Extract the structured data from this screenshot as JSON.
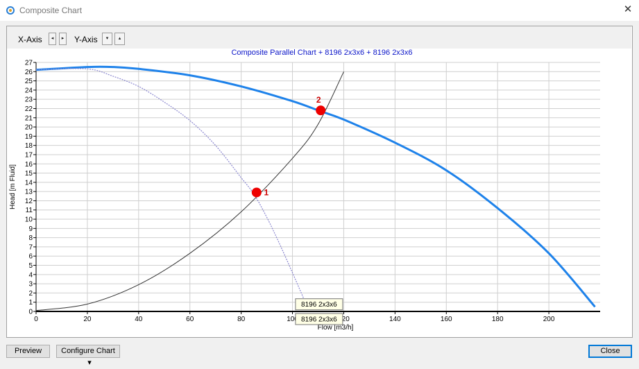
{
  "window": {
    "title": "Composite Chart",
    "close_glyph": "✕",
    "icon": "chart-app-icon"
  },
  "toolbar": {
    "x_axis_label": "X-Axis",
    "y_axis_label": "Y-Axis",
    "x_left_glyph": "◂",
    "x_right_glyph": "▸",
    "y_down_glyph": "▾",
    "y_up_glyph": "▴"
  },
  "buttons": {
    "preview": "Preview",
    "configure": "Configure Chart",
    "configure_arrow": "▾",
    "close": "Close"
  },
  "chart_data": {
    "type": "line",
    "title": "Composite Parallel Chart + 8196 2x3x6 + 8196 2x3x6",
    "xlabel": "Flow [m3/h]",
    "ylabel": "Head [m Fluid]",
    "xlim": [
      0,
      220
    ],
    "ylim": [
      0,
      27
    ],
    "x_ticks": [
      0,
      20,
      40,
      60,
      80,
      100,
      120,
      140,
      160,
      180,
      200
    ],
    "y_ticks": [
      0,
      1,
      2,
      3,
      4,
      5,
      6,
      7,
      8,
      9,
      10,
      11,
      12,
      13,
      14,
      15,
      16,
      17,
      18,
      19,
      20,
      21,
      22,
      23,
      24,
      25,
      26,
      27
    ],
    "grid": true,
    "colors": {
      "composite": "#1e82ea",
      "single": "#8a86cf",
      "system": "#333333",
      "marker": "#ee0000",
      "title": "#0a14c8"
    },
    "series": [
      {
        "key": "composite",
        "style": "solid-thick",
        "x": [
          0,
          20,
          30,
          40,
          60,
          80,
          100,
          110,
          120,
          140,
          160,
          180,
          200,
          218
        ],
        "y": [
          26.2,
          26.5,
          26.5,
          26.3,
          25.6,
          24.4,
          22.8,
          21.8,
          20.8,
          18.3,
          15.3,
          11.2,
          6.3,
          0.5
        ]
      },
      {
        "key": "single",
        "style": "dotted",
        "x": [
          0,
          20,
          30,
          40,
          50,
          60,
          70,
          80,
          85,
          90,
          95,
          100,
          105
        ],
        "y": [
          26.2,
          26.3,
          25.5,
          24.4,
          22.7,
          20.7,
          18.0,
          14.5,
          12.7,
          10.2,
          7.3,
          4.2,
          1.0
        ]
      },
      {
        "key": "system",
        "style": "solid-thin",
        "x": [
          0,
          20,
          40,
          60,
          80,
          100,
          110,
          120
        ],
        "y": [
          0.1,
          0.8,
          2.9,
          6.3,
          10.8,
          16.6,
          20.3,
          26.0
        ]
      }
    ],
    "markers": [
      {
        "label": "1",
        "x": 86,
        "y": 12.9
      },
      {
        "label": "2",
        "x": 111,
        "y": 21.8
      }
    ],
    "tooltips": [
      {
        "text": "8196 2x3x6",
        "x": 112,
        "y": 0.7
      },
      {
        "text": "8196 2x3x6",
        "x": 112,
        "y": -0.9
      }
    ]
  }
}
